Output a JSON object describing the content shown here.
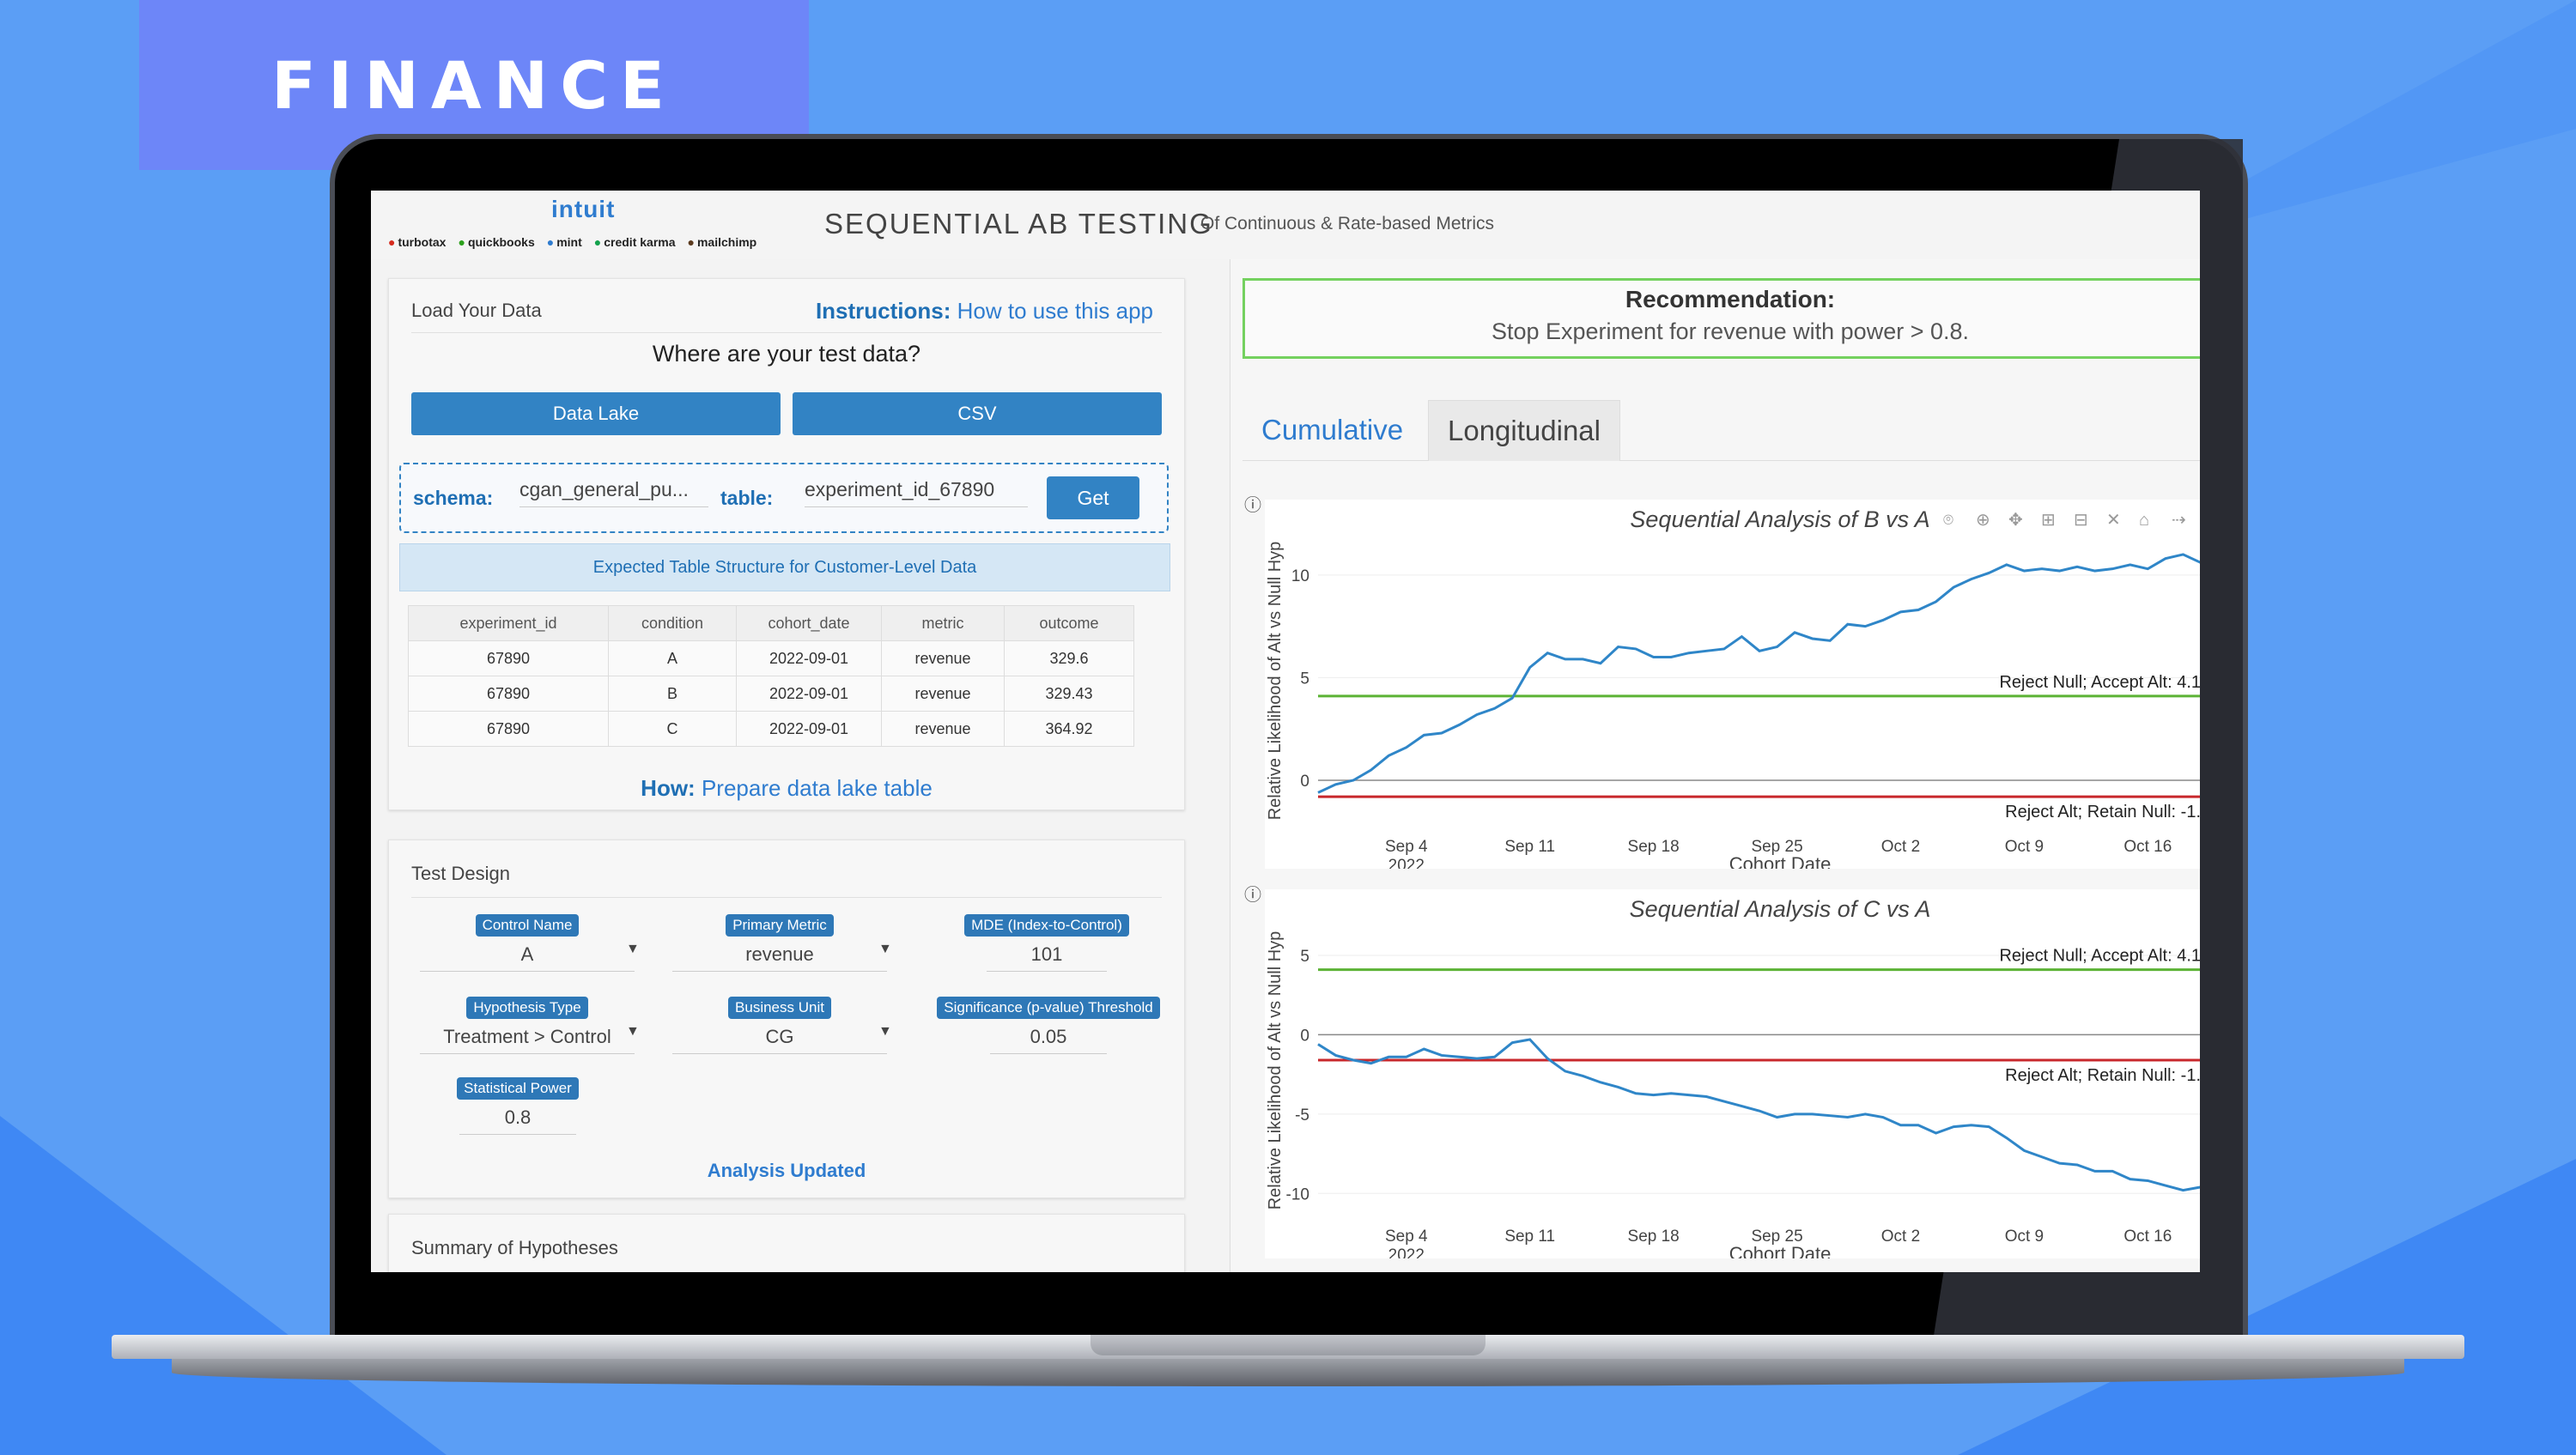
{
  "banner": {
    "tag": "FINANCE"
  },
  "header": {
    "logo": "intuit",
    "brands": [
      "turbotax",
      "quickbooks",
      "mint",
      "credit karma",
      "mailchimp"
    ],
    "title": "SEQUENTIAL AB TESTING",
    "subtitle": "Of Continuous & Rate-based Metrics"
  },
  "load_panel": {
    "heading": "Load Your Data",
    "instructions_label": "Instructions:",
    "instructions_link": "How to use this app",
    "question": "Where are your test data?",
    "btn_datalake": "Data Lake",
    "btn_csv": "CSV",
    "schema_label": "schema:",
    "schema_value": "cgan_general_pu...",
    "table_label": "table:",
    "table_value": "experiment_id_67890",
    "get_label": "Get",
    "expected_label": "Expected Table Structure for Customer-Level Data",
    "columns": [
      "experiment_id",
      "condition",
      "cohort_date",
      "metric",
      "outcome"
    ],
    "rows": [
      [
        "67890",
        "A",
        "2022-09-01",
        "revenue",
        "329.6"
      ],
      [
        "67890",
        "B",
        "2022-09-01",
        "revenue",
        "329.43"
      ],
      [
        "67890",
        "C",
        "2022-09-01",
        "revenue",
        "364.92"
      ]
    ],
    "how_label": "How:",
    "how_link": "Prepare data lake table"
  },
  "design_panel": {
    "heading": "Test Design",
    "control_name_label": "Control Name",
    "control_name_value": "A",
    "primary_metric_label": "Primary Metric",
    "primary_metric_value": "revenue",
    "mde_label": "MDE (Index-to-Control)",
    "mde_value": "101",
    "hypothesis_label": "Hypothesis Type",
    "hypothesis_value": "Treatment > Control",
    "business_unit_label": "Business Unit",
    "business_unit_value": "CG",
    "significance_label": "Significance (p-value) Threshold",
    "significance_value": "0.05",
    "power_label": "Statistical Power",
    "power_value": "0.8",
    "status": "Analysis Updated"
  },
  "summary_panel": {
    "heading": "Summary of Hypotheses"
  },
  "recommendation": {
    "title": "Recommendation:",
    "text": "Stop Experiment for revenue with power > 0.8."
  },
  "tabs": [
    "Cumulative",
    "Longitudinal"
  ],
  "chart_data": [
    {
      "type": "line",
      "title": "Sequential Analysis of B vs A",
      "xlabel": "Cohort Date",
      "ylabel": "Relative Likelihood of Alt vs Null Hyp",
      "xticks": [
        "Sep 4\n2022",
        "Sep 11",
        "Sep 18",
        "Sep 25",
        "Oct 2",
        "Oct 9",
        "Oct 16"
      ],
      "yticks": [
        0,
        5,
        10
      ],
      "ylim": [
        -2.3,
        12
      ],
      "xlim": [
        -5,
        45
      ],
      "thresholds": [
        {
          "label": "Reject Null; Accept Alt: 4.1",
          "value": 4.1,
          "color": "#5cb335"
        },
        {
          "label": "Reject Alt; Retain Null: -1.",
          "value": -0.8,
          "color": "#c8282c"
        }
      ],
      "series": [
        {
          "x": [
            -5,
            -4,
            -3,
            -2,
            -1,
            0,
            1,
            2,
            3,
            4,
            5,
            6,
            7,
            8,
            9,
            10,
            11,
            12,
            13,
            14,
            15,
            16,
            17,
            18,
            19,
            20,
            21,
            22,
            23,
            24,
            25,
            26,
            27,
            28,
            29,
            30,
            31,
            32,
            33,
            34,
            35,
            36,
            37,
            38,
            39,
            40,
            41,
            42,
            43,
            44,
            45
          ],
          "values": [
            -0.6,
            -0.2,
            0.0,
            0.5,
            1.2,
            1.6,
            2.2,
            2.3,
            2.7,
            3.2,
            3.5,
            4.0,
            5.5,
            6.2,
            5.9,
            5.9,
            5.7,
            6.5,
            6.4,
            6.0,
            6.0,
            6.2,
            6.3,
            6.4,
            7.0,
            6.3,
            6.5,
            7.2,
            6.9,
            6.8,
            7.6,
            7.5,
            7.8,
            8.2,
            8.3,
            8.7,
            9.4,
            9.8,
            10.1,
            10.5,
            10.2,
            10.3,
            10.2,
            10.4,
            10.2,
            10.3,
            10.5,
            10.3,
            10.8,
            11.0,
            10.6
          ]
        }
      ]
    },
    {
      "type": "line",
      "title": "Sequential Analysis of C vs A",
      "xlabel": "Cohort Date",
      "ylabel": "Relative Likelihood of Alt vs Null Hyp",
      "xticks": [
        "Sep 4\n2022",
        "Sep 11",
        "Sep 18",
        "Sep 25",
        "Oct 2",
        "Oct 9",
        "Oct 16"
      ],
      "yticks": [
        -10,
        -5,
        0,
        5
      ],
      "ylim": [
        -11.5,
        7
      ],
      "xlim": [
        -5,
        45
      ],
      "thresholds": [
        {
          "label": "Reject Null; Accept Alt: 4.1",
          "value": 4.1,
          "color": "#5cb335"
        },
        {
          "label": "Reject Alt; Retain Null: -1.",
          "value": -1.6,
          "color": "#c8282c"
        }
      ],
      "series": [
        {
          "x": [
            -5,
            -4,
            -3,
            -2,
            -1,
            0,
            1,
            2,
            3,
            4,
            5,
            6,
            7,
            8,
            9,
            10,
            11,
            12,
            13,
            14,
            15,
            16,
            17,
            18,
            19,
            20,
            21,
            22,
            23,
            24,
            25,
            26,
            27,
            28,
            29,
            30,
            31,
            32,
            33,
            34,
            35,
            36,
            37,
            38,
            39,
            40,
            41,
            42,
            43,
            44,
            45
          ],
          "values": [
            -0.6,
            -1.3,
            -1.6,
            -1.8,
            -1.4,
            -1.4,
            -0.9,
            -1.3,
            -1.4,
            -1.5,
            -1.4,
            -0.5,
            -0.3,
            -1.5,
            -2.3,
            -2.6,
            -3.0,
            -3.3,
            -3.7,
            -3.8,
            -3.7,
            -3.8,
            -3.9,
            -4.2,
            -4.5,
            -4.8,
            -5.2,
            -5.0,
            -5.0,
            -5.1,
            -5.2,
            -5.0,
            -5.2,
            -5.7,
            -5.7,
            -6.2,
            -5.8,
            -5.7,
            -5.8,
            -6.5,
            -7.3,
            -7.7,
            -8.1,
            -8.2,
            -8.6,
            -8.6,
            -9.1,
            -9.2,
            -9.5,
            -9.8,
            -9.6
          ]
        }
      ]
    }
  ]
}
